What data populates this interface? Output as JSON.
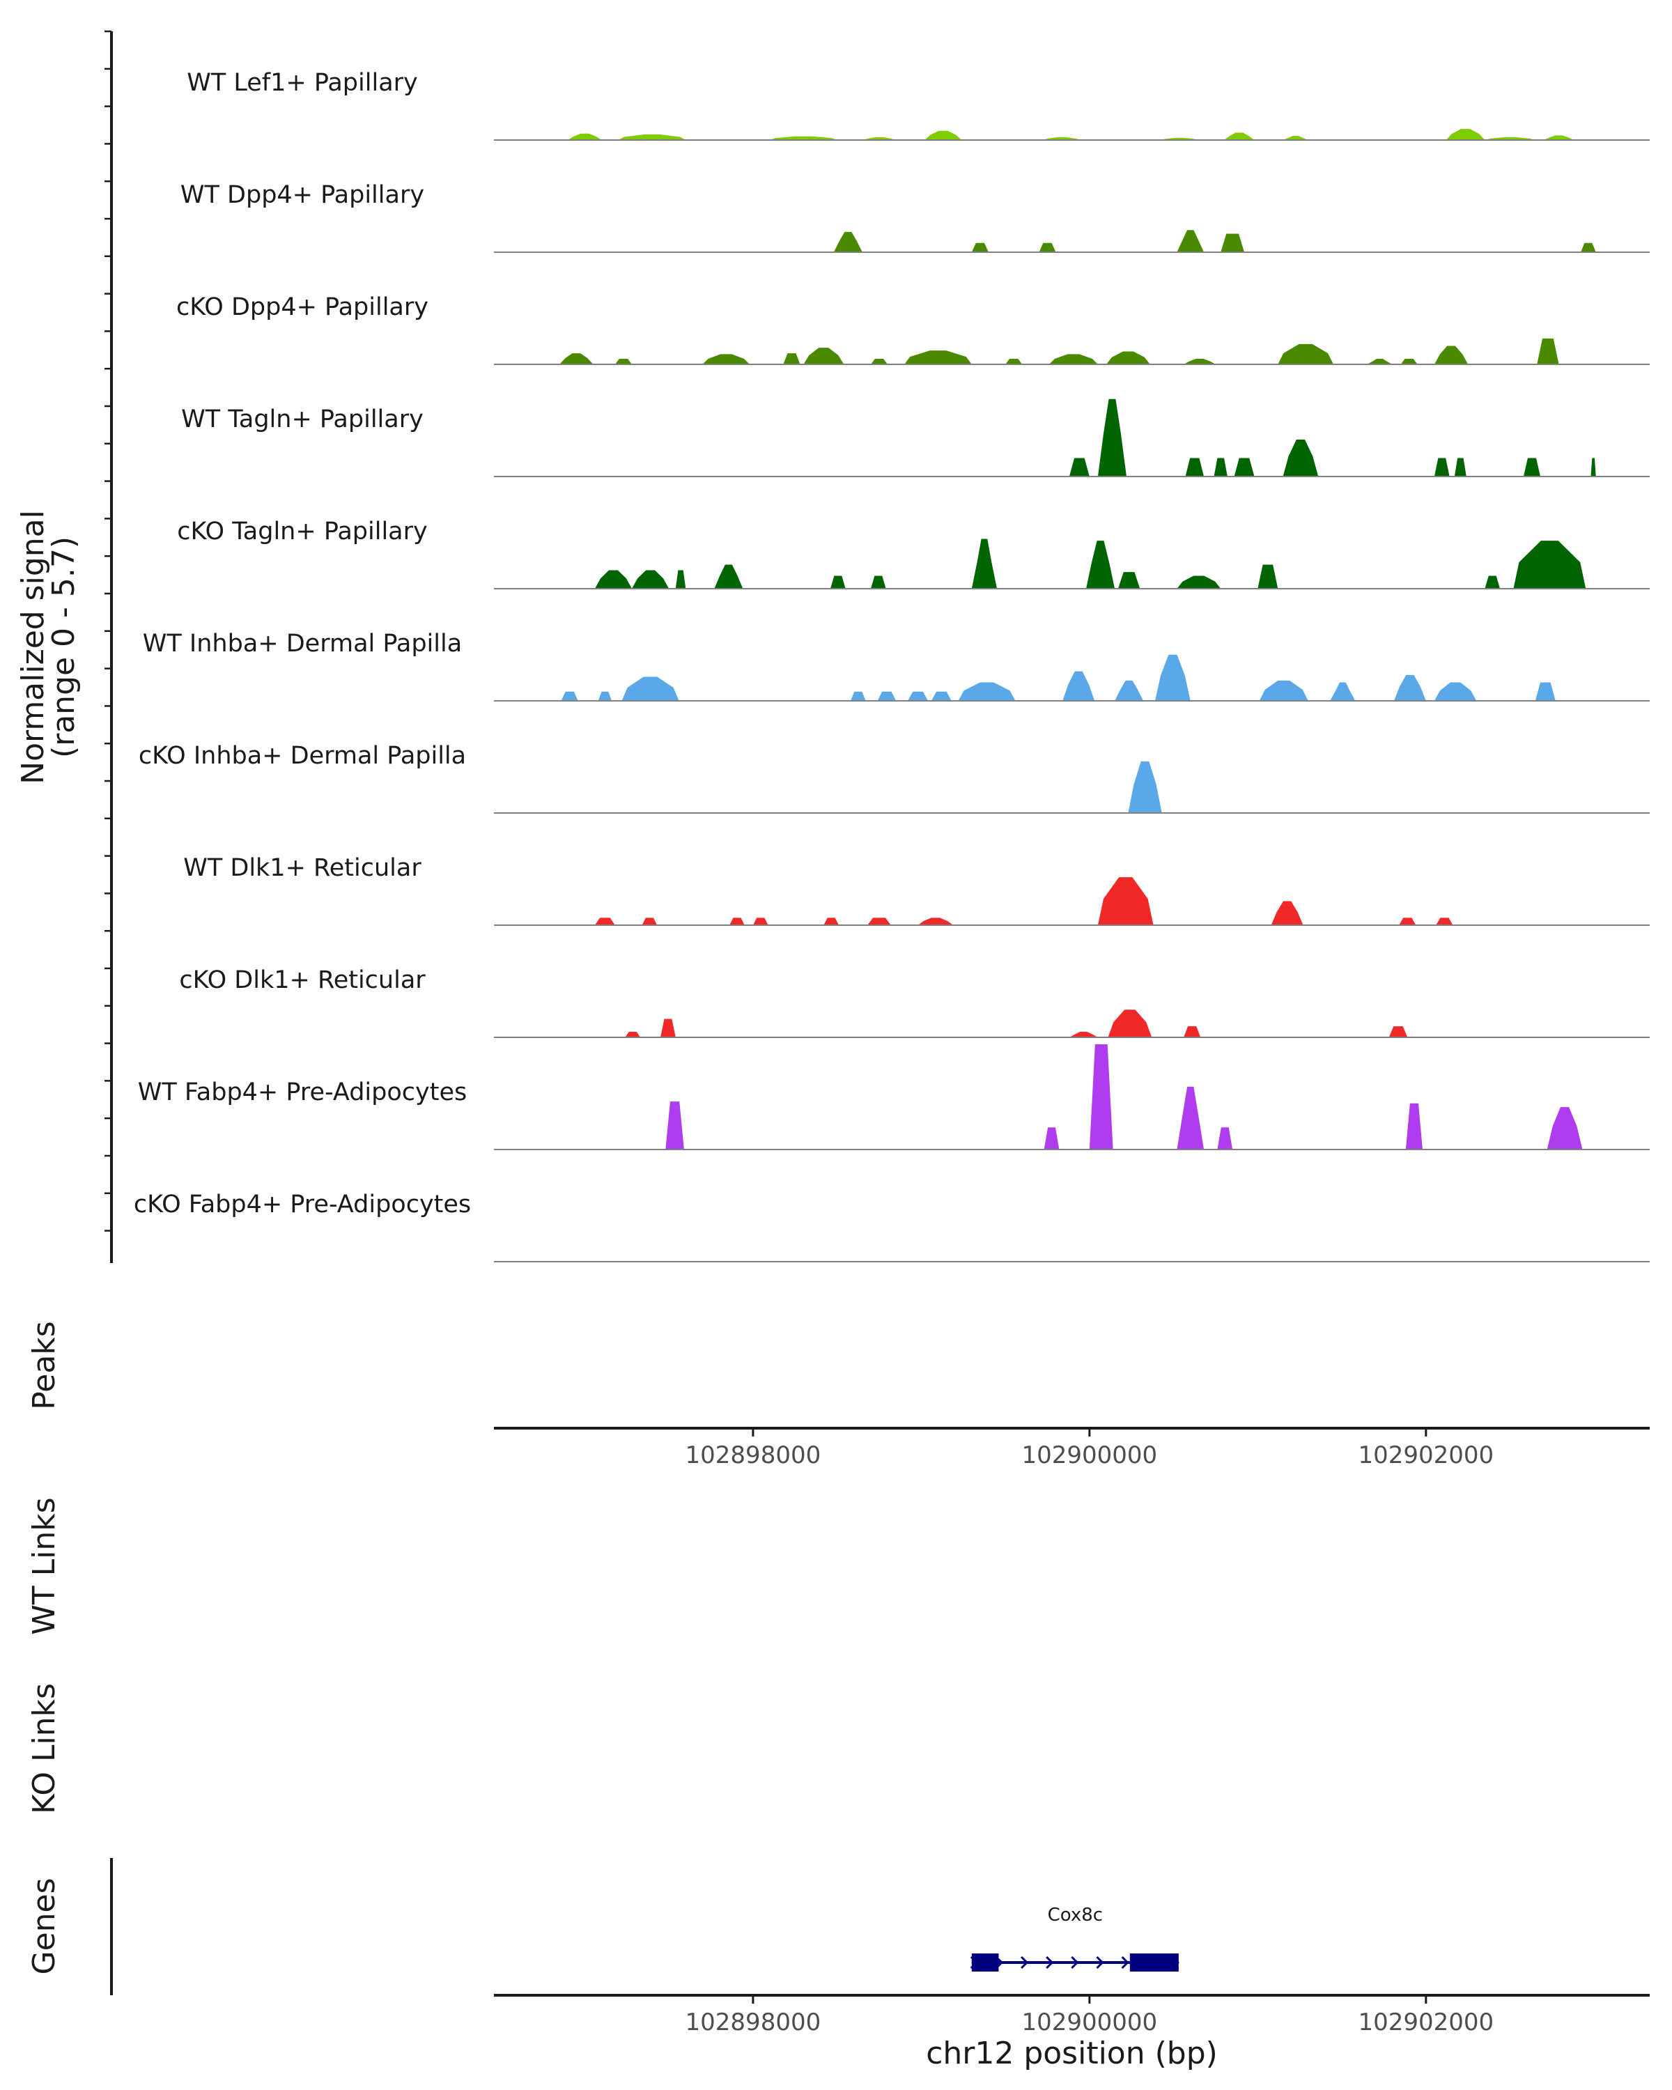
{
  "chart_data": {
    "type": "area",
    "chromosome": "chr12",
    "xlabel": "chr12 position (bp)",
    "xlim": [
      102896460,
      102903330
    ],
    "x_ticks": [
      102898000,
      102900000,
      102902000
    ],
    "x_tick_labels": [
      "102898000",
      "102900000",
      "102902000"
    ],
    "y_axis_title_line1": "Normalized signal",
    "y_axis_title_line2": "(range 0 - 5.7)",
    "ylim": [
      0,
      5.7
    ],
    "panel_titles": {
      "peaks": "Peaks",
      "wt_links": "WT Links",
      "ko_links": "KO Links",
      "genes": "Genes"
    },
    "series": [
      {
        "name": "WT Lef1+ Papillary",
        "color": "#7fcc00",
        "peaks": [
          [
            102896900,
            102897100,
            0.35
          ],
          [
            102897200,
            102897600,
            0.3
          ],
          [
            102898100,
            102898500,
            0.2
          ],
          [
            102898650,
            102898850,
            0.15
          ],
          [
            102899020,
            102899240,
            0.5
          ],
          [
            102899720,
            102899950,
            0.15
          ],
          [
            102900420,
            102900650,
            0.12
          ],
          [
            102900800,
            102900980,
            0.4
          ],
          [
            102901150,
            102901300,
            0.22
          ],
          [
            102902120,
            102902350,
            0.6
          ],
          [
            102902350,
            102902650,
            0.15
          ],
          [
            102902700,
            102902880,
            0.25
          ]
        ]
      },
      {
        "name": "WT Dpp4+ Papillary",
        "color": "#4a8a00",
        "peaks": [
          [
            102898480,
            102898650,
            1.1
          ],
          [
            102899300,
            102899400,
            0.5
          ],
          [
            102899700,
            102899800,
            0.5
          ],
          [
            102900520,
            102900680,
            1.2
          ],
          [
            102900780,
            102900920,
            1.0
          ],
          [
            102902920,
            102903010,
            0.5
          ]
        ]
      },
      {
        "name": "cKO Dpp4+ Papillary",
        "color": "#4a8a00",
        "peaks": [
          [
            102896850,
            102897050,
            0.6
          ],
          [
            102897180,
            102897280,
            0.3
          ],
          [
            102897700,
            102897980,
            0.55
          ],
          [
            102898180,
            102898280,
            0.6
          ],
          [
            102898300,
            102898540,
            0.9
          ],
          [
            102898700,
            102898800,
            0.3
          ],
          [
            102898900,
            102899300,
            0.75
          ],
          [
            102899500,
            102899600,
            0.3
          ],
          [
            102899760,
            102900050,
            0.55
          ],
          [
            102900100,
            102900360,
            0.7
          ],
          [
            102900560,
            102900750,
            0.3
          ],
          [
            102901120,
            102901450,
            1.1
          ],
          [
            102901650,
            102901800,
            0.3
          ],
          [
            102901850,
            102901950,
            0.3
          ],
          [
            102902050,
            102902250,
            1.0
          ],
          [
            102902660,
            102902790,
            1.4
          ]
        ]
      },
      {
        "name": "WT Tagln+ Papillary",
        "color": "#006400",
        "peaks": [
          [
            102899880,
            102900000,
            1.0
          ],
          [
            102900050,
            102900220,
            4.2
          ],
          [
            102900570,
            102900680,
            1.0
          ],
          [
            102900740,
            102900820,
            1.0
          ],
          [
            102900860,
            102900980,
            1.0
          ],
          [
            102901150,
            102901360,
            2.0
          ],
          [
            102902050,
            102902140,
            1.0
          ],
          [
            102902170,
            102902240,
            1.0
          ],
          [
            102902580,
            102902680,
            1.0
          ],
          [
            102902980,
            102903010,
            1.0
          ]
        ]
      },
      {
        "name": "cKO Tagln+ Papillary",
        "color": "#006400",
        "peaks": [
          [
            102897060,
            102897280,
            1.0
          ],
          [
            102897280,
            102897500,
            1.0
          ],
          [
            102897540,
            102897600,
            1.0
          ],
          [
            102897770,
            102897940,
            1.3
          ],
          [
            102898460,
            102898550,
            0.7
          ],
          [
            102898700,
            102898790,
            0.7
          ],
          [
            102899300,
            102899450,
            2.7
          ],
          [
            102899980,
            102900150,
            2.6
          ],
          [
            102900170,
            102900300,
            0.9
          ],
          [
            102900520,
            102900780,
            0.7
          ],
          [
            102901000,
            102901120,
            1.3
          ],
          [
            102902350,
            102902440,
            0.7
          ],
          [
            102902520,
            102902950,
            2.6
          ]
        ]
      },
      {
        "name": "WT Inhba+ Dermal Papilla",
        "color": "#5aa8e8",
        "peaks": [
          [
            102896860,
            102896960,
            0.5
          ],
          [
            102897080,
            102897160,
            0.5
          ],
          [
            102897220,
            102897560,
            1.3
          ],
          [
            102898580,
            102898670,
            0.5
          ],
          [
            102898740,
            102898850,
            0.5
          ],
          [
            102898920,
            102899040,
            0.5
          ],
          [
            102899060,
            102899180,
            0.5
          ],
          [
            102899220,
            102899560,
            1.0
          ],
          [
            102899840,
            102900030,
            1.6
          ],
          [
            102900150,
            102900320,
            1.1
          ],
          [
            102900390,
            102900600,
            2.5
          ],
          [
            102901010,
            102901300,
            1.1
          ],
          [
            102901430,
            102901580,
            1.0
          ],
          [
            102901810,
            102902000,
            1.4
          ],
          [
            102902050,
            102902300,
            1.0
          ],
          [
            102902650,
            102902770,
            1.0
          ]
        ]
      },
      {
        "name": "cKO Inhba+ Dermal Papilla",
        "color": "#5aa8e8",
        "peaks": [
          [
            102900230,
            102900430,
            2.8
          ]
        ]
      },
      {
        "name": "WT Dlk1+ Reticular",
        "color": "#f02828",
        "peaks": [
          [
            102897060,
            102897180,
            0.4
          ],
          [
            102897340,
            102897430,
            0.4
          ],
          [
            102897860,
            102897950,
            0.4
          ],
          [
            102898000,
            102898090,
            0.4
          ],
          [
            102898420,
            102898510,
            0.4
          ],
          [
            102898680,
            102898820,
            0.4
          ],
          [
            102898980,
            102899190,
            0.4
          ],
          [
            102900050,
            102900380,
            2.6
          ],
          [
            102901080,
            102901270,
            1.3
          ],
          [
            102901840,
            102901940,
            0.4
          ],
          [
            102902060,
            102902160,
            0.4
          ]
        ]
      },
      {
        "name": "cKO Dlk1+ Reticular",
        "color": "#f02828",
        "peaks": [
          [
            102897240,
            102897330,
            0.3
          ],
          [
            102897450,
            102897540,
            1.0
          ],
          [
            102899880,
            102900050,
            0.3
          ],
          [
            102900110,
            102900370,
            1.5
          ],
          [
            102900560,
            102900660,
            0.6
          ],
          [
            102901780,
            102901890,
            0.6
          ]
        ]
      },
      {
        "name": "WT Fabp4+ Pre-Adipocytes",
        "color": "#b03cf0",
        "peaks": [
          [
            102897480,
            102897590,
            2.6
          ],
          [
            102899730,
            102899820,
            1.2
          ],
          [
            102900000,
            102900140,
            5.7
          ],
          [
            102900520,
            102900680,
            3.4
          ],
          [
            102900760,
            102900850,
            1.2
          ],
          [
            102901880,
            102901980,
            2.5
          ],
          [
            102902720,
            102902930,
            2.3
          ]
        ]
      },
      {
        "name": "cKO Fabp4+ Pre-Adipocytes",
        "color": "#b03cf0",
        "peaks": []
      }
    ],
    "genes": [
      {
        "name": "Cox8c",
        "start": 102899300,
        "end": 102900530,
        "strand": "+",
        "exons": [
          [
            102899300,
            102899460
          ],
          [
            102900240,
            102900530
          ]
        ]
      }
    ]
  }
}
